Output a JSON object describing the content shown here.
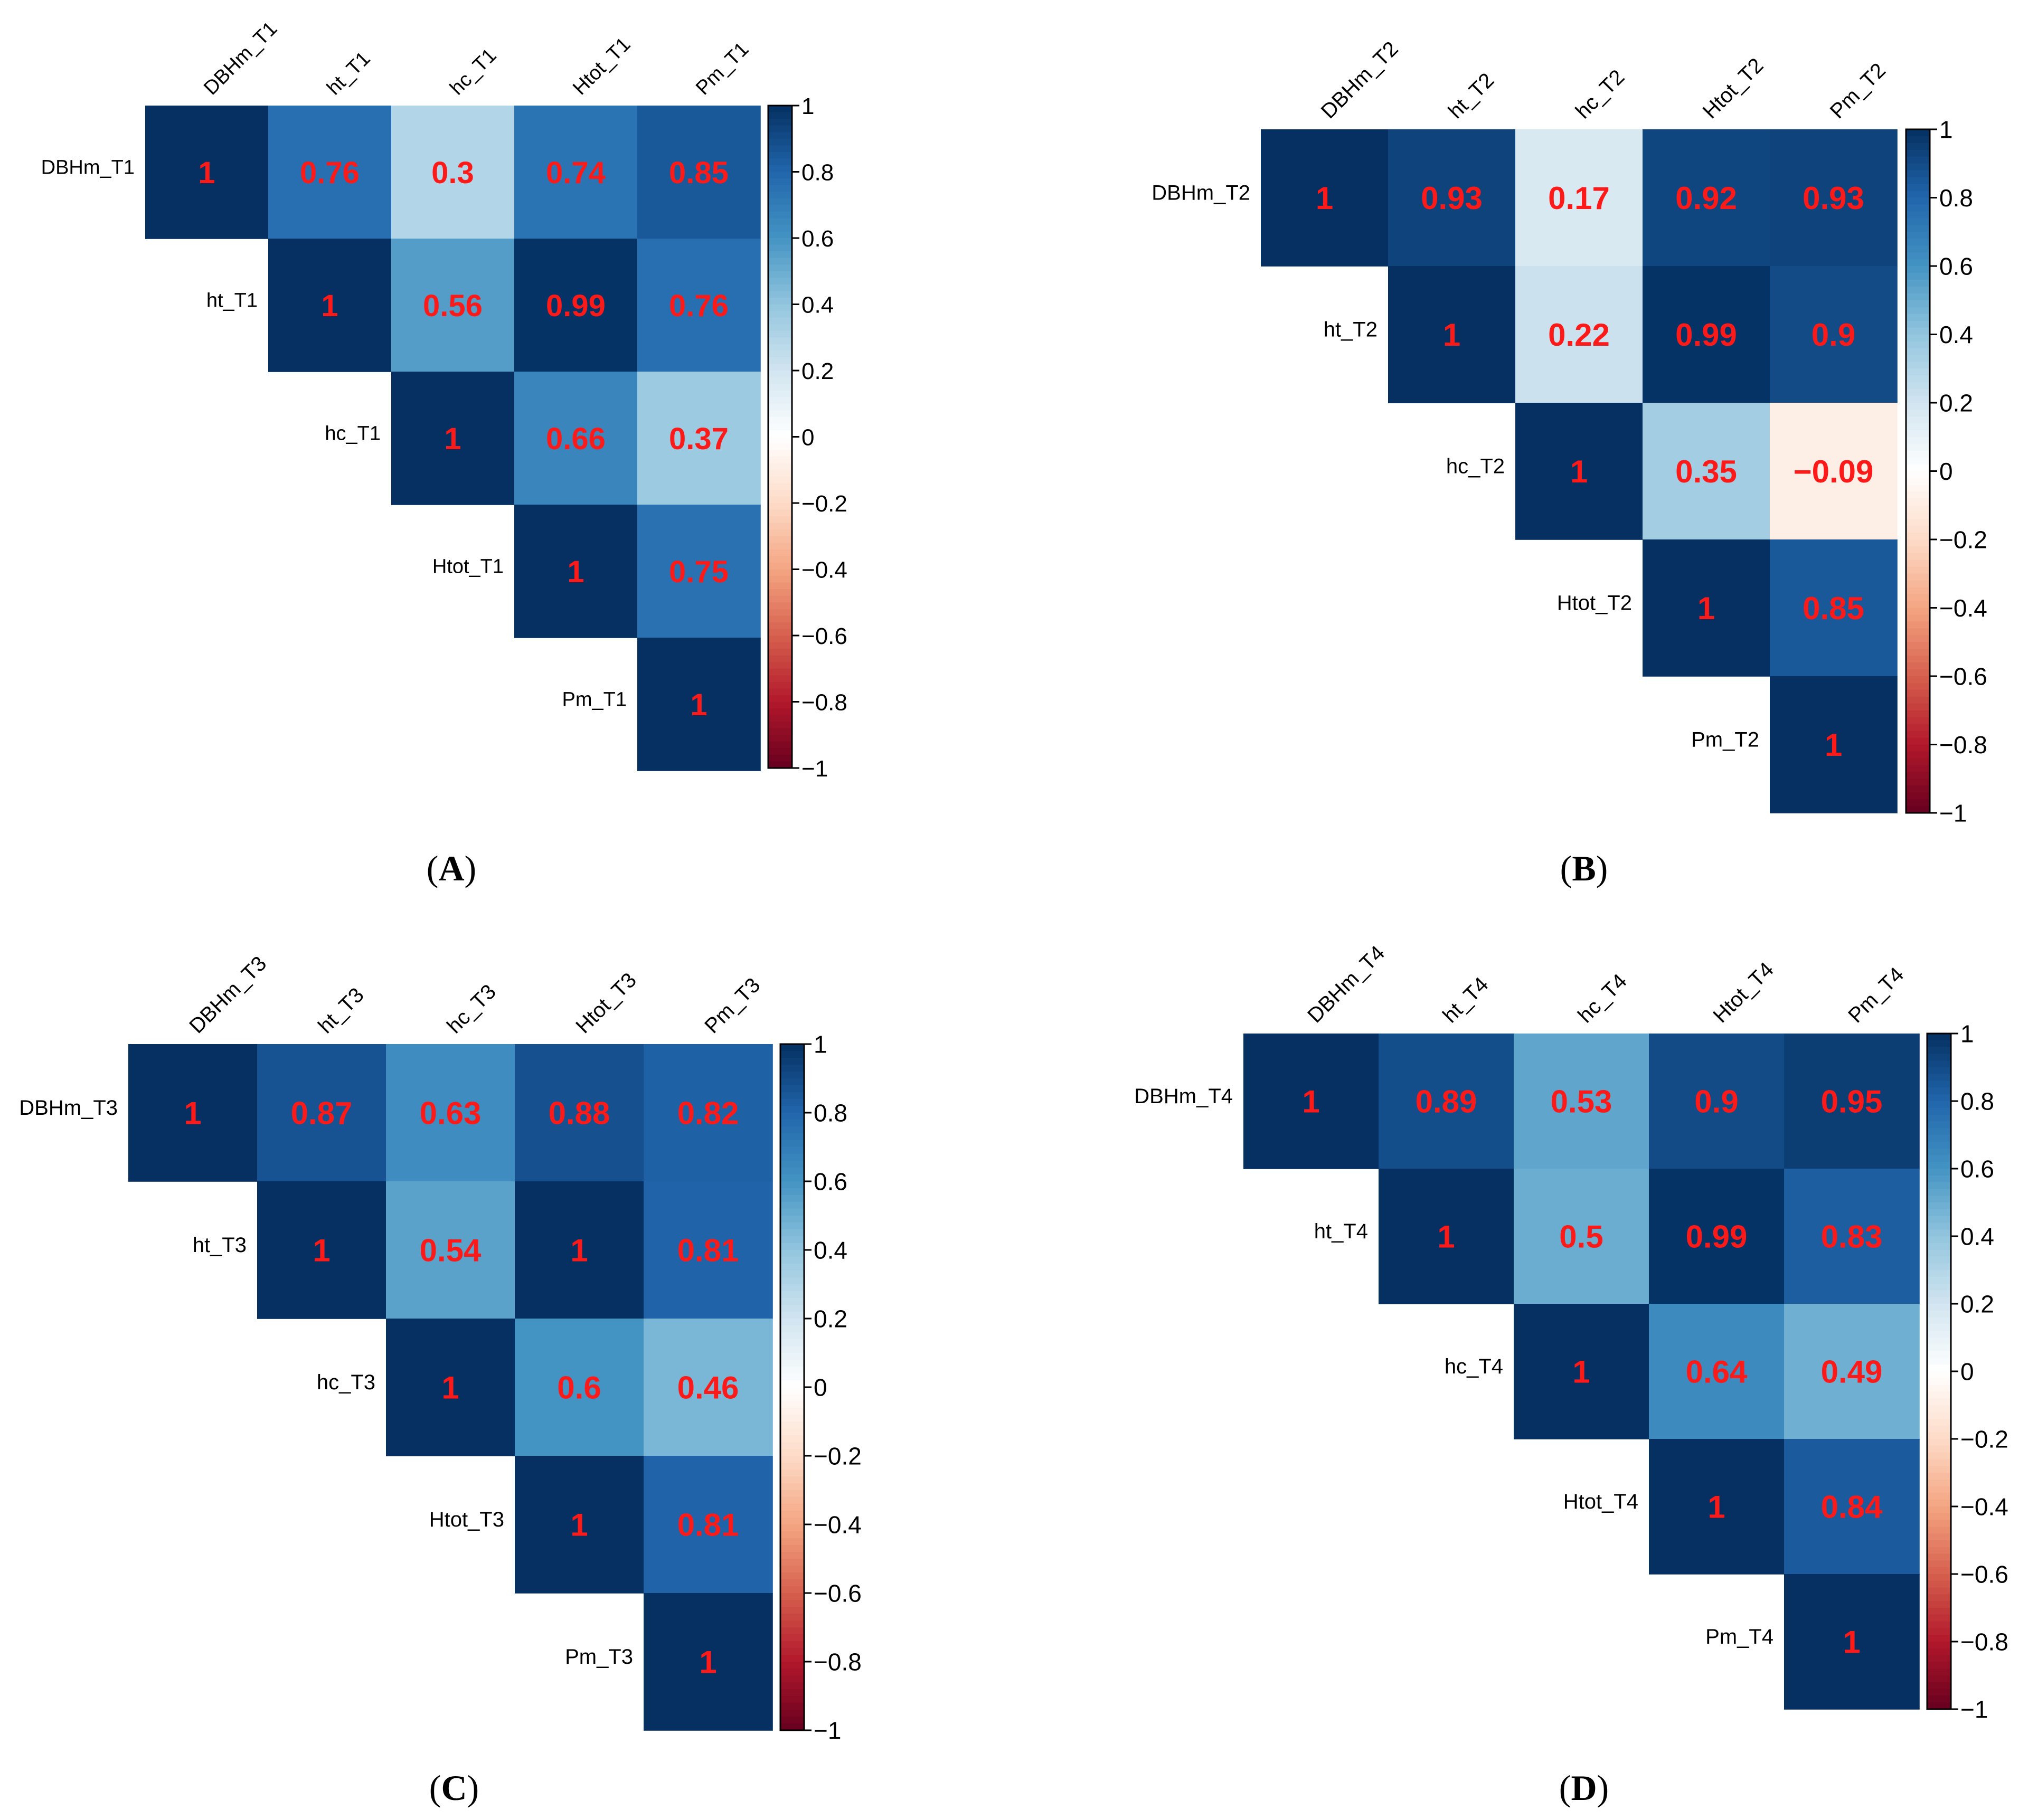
{
  "colors": {
    "scale": [
      "#67001f",
      "#b2182b",
      "#d6604d",
      "#f4a582",
      "#fddbc7",
      "#ffffff",
      "#d1e5f0",
      "#92c5de",
      "#4393c3",
      "#2166ac",
      "#053061"
    ],
    "value_text": "#ff1a1a"
  },
  "chart_data": [
    {
      "type": "heatmap",
      "panel_label_parts": [
        "(",
        "A",
        ")"
      ],
      "variables": [
        "DBHm_T1",
        "ht_T1",
        "hc_T1",
        "Htot_T1",
        "Pm_T1"
      ],
      "matrix": [
        [
          1,
          0.76,
          0.3,
          0.74,
          0.85
        ],
        [
          null,
          1,
          0.56,
          0.99,
          0.76
        ],
        [
          null,
          null,
          1,
          0.66,
          0.37
        ],
        [
          null,
          null,
          null,
          1,
          0.75
        ],
        [
          null,
          null,
          null,
          null,
          1
        ]
      ],
      "labels": [
        [
          "1",
          "0.76",
          "0.3",
          "0.74",
          "0.85"
        ],
        [
          null,
          "1",
          "0.56",
          "0.99",
          "0.76"
        ],
        [
          null,
          null,
          "1",
          "0.66",
          "0.37"
        ],
        [
          null,
          null,
          null,
          "1",
          "0.75"
        ],
        [
          null,
          null,
          null,
          null,
          "1"
        ]
      ],
      "colorbar": {
        "range": [
          -1,
          1
        ],
        "ticks": [
          "1",
          "0.8",
          "0.6",
          "0.4",
          "0.2",
          "0",
          "−0.2",
          "−0.4",
          "−0.6",
          "−0.8",
          "−1"
        ]
      }
    },
    {
      "type": "heatmap",
      "panel_label_parts": [
        "(",
        "B",
        ")"
      ],
      "variables": [
        "DBHm_T2",
        "ht_T2",
        "hc_T2",
        "Htot_T2",
        "Pm_T2"
      ],
      "matrix": [
        [
          1,
          0.93,
          0.17,
          0.92,
          0.93
        ],
        [
          null,
          1,
          0.22,
          0.99,
          0.9
        ],
        [
          null,
          null,
          1,
          0.35,
          -0.09
        ],
        [
          null,
          null,
          null,
          1,
          0.85
        ],
        [
          null,
          null,
          null,
          null,
          1
        ]
      ],
      "labels": [
        [
          "1",
          "0.93",
          "0.17",
          "0.92",
          "0.93"
        ],
        [
          null,
          "1",
          "0.22",
          "0.99",
          "0.9"
        ],
        [
          null,
          null,
          "1",
          "0.35",
          "−0.09"
        ],
        [
          null,
          null,
          null,
          "1",
          "0.85"
        ],
        [
          null,
          null,
          null,
          null,
          "1"
        ]
      ],
      "colorbar": {
        "range": [
          -1,
          1
        ],
        "ticks": [
          "1",
          "0.8",
          "0.6",
          "0.4",
          "0.2",
          "0",
          "−0.2",
          "−0.4",
          "−0.6",
          "−0.8",
          "−1"
        ]
      }
    },
    {
      "type": "heatmap",
      "panel_label_parts": [
        "(",
        "C",
        ")"
      ],
      "variables": [
        "DBHm_T3",
        "ht_T3",
        "hc_T3",
        "Htot_T3",
        "Pm_T3"
      ],
      "matrix": [
        [
          1,
          0.87,
          0.63,
          0.88,
          0.82
        ],
        [
          null,
          1,
          0.54,
          1,
          0.81
        ],
        [
          null,
          null,
          1,
          0.6,
          0.46
        ],
        [
          null,
          null,
          null,
          1,
          0.81
        ],
        [
          null,
          null,
          null,
          null,
          1
        ]
      ],
      "labels": [
        [
          "1",
          "0.87",
          "0.63",
          "0.88",
          "0.82"
        ],
        [
          null,
          "1",
          "0.54",
          "1",
          "0.81"
        ],
        [
          null,
          null,
          "1",
          "0.6",
          "0.46"
        ],
        [
          null,
          null,
          null,
          "1",
          "0.81"
        ],
        [
          null,
          null,
          null,
          null,
          "1"
        ]
      ],
      "colorbar": {
        "range": [
          -1,
          1
        ],
        "ticks": [
          "1",
          "0.8",
          "0.6",
          "0.4",
          "0.2",
          "0",
          "−0.2",
          "−0.4",
          "−0.6",
          "−0.8",
          "−1"
        ]
      }
    },
    {
      "type": "heatmap",
      "panel_label_parts": [
        "(",
        "D",
        ")"
      ],
      "variables": [
        "DBHm_T4",
        "ht_T4",
        "hc_T4",
        "Htot_T4",
        "Pm_T4"
      ],
      "matrix": [
        [
          1,
          0.89,
          0.53,
          0.9,
          0.95
        ],
        [
          null,
          1,
          0.5,
          0.99,
          0.83
        ],
        [
          null,
          null,
          1,
          0.64,
          0.49
        ],
        [
          null,
          null,
          null,
          1,
          0.84
        ],
        [
          null,
          null,
          null,
          null,
          1
        ]
      ],
      "labels": [
        [
          "1",
          "0.89",
          "0.53",
          "0.9",
          "0.95"
        ],
        [
          null,
          "1",
          "0.5",
          "0.99",
          "0.83"
        ],
        [
          null,
          null,
          "1",
          "0.64",
          "0.49"
        ],
        [
          null,
          null,
          null,
          "1",
          "0.84"
        ],
        [
          null,
          null,
          null,
          null,
          "1"
        ]
      ],
      "colorbar": {
        "range": [
          -1,
          1
        ],
        "ticks": [
          "1",
          "0.8",
          "0.6",
          "0.4",
          "0.2",
          "0",
          "−0.2",
          "−0.4",
          "−0.6",
          "−0.8",
          "−1"
        ]
      }
    }
  ]
}
